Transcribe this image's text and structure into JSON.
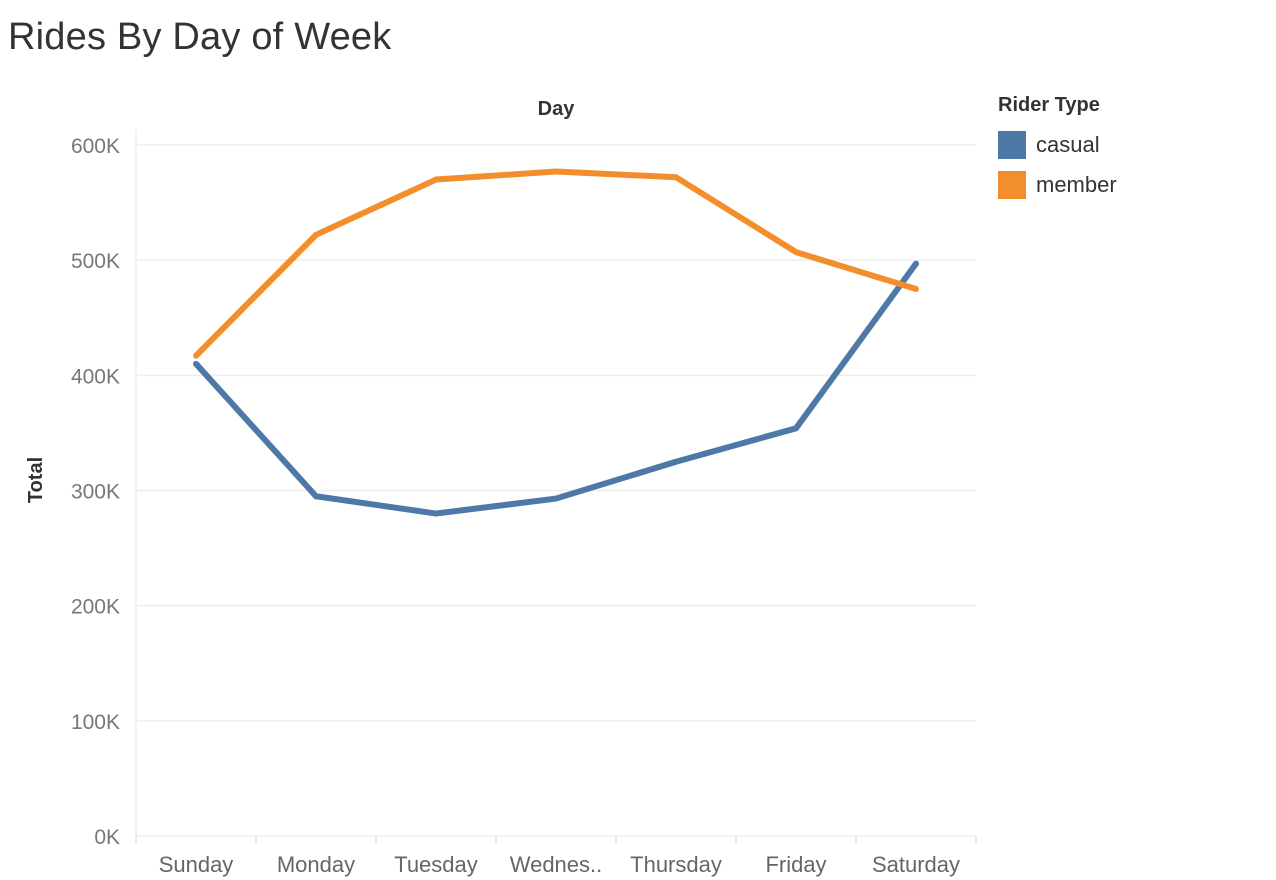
{
  "title": "Rides By Day of Week",
  "legend": {
    "title": "Rider Type",
    "items": [
      {
        "label": "casual",
        "color": "#4e79a7"
      },
      {
        "label": "member",
        "color": "#f28e2b"
      }
    ]
  },
  "chart_data": {
    "type": "line",
    "xlabel": "Day",
    "ylabel": "Total",
    "categories": [
      "Sunday",
      "Monday",
      "Tuesday",
      "Wednes..",
      "Thursday",
      "Friday",
      "Saturday"
    ],
    "yticks": [
      "0K",
      "100K",
      "200K",
      "300K",
      "400K",
      "500K",
      "600K"
    ],
    "ylim": [
      0,
      600000
    ],
    "grid": true,
    "legend_position": "right",
    "series": [
      {
        "name": "casual",
        "color": "#4e79a7",
        "values": [
          410000,
          295000,
          280000,
          293000,
          325000,
          354000,
          497000
        ]
      },
      {
        "name": "member",
        "color": "#f28e2b",
        "values": [
          417000,
          522000,
          570000,
          577000,
          572000,
          507000,
          475000
        ]
      }
    ]
  }
}
